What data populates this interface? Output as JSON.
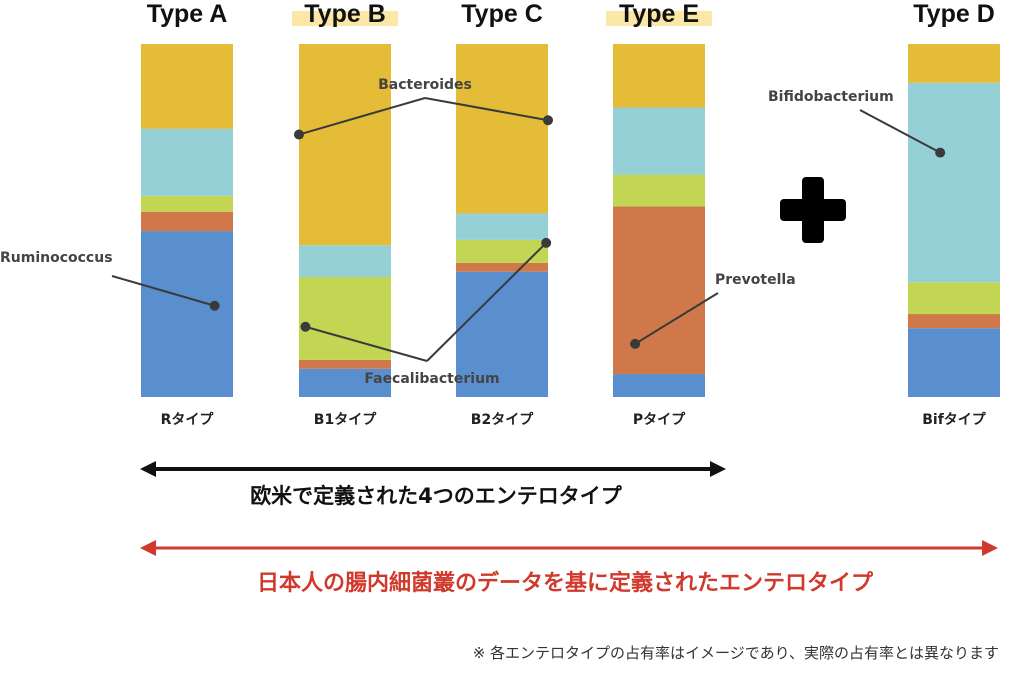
{
  "chart_data": {
    "type": "bar",
    "stacked": true,
    "normalized": true,
    "segment_order_bottom_to_top": [
      "Ruminococcus",
      "Prevotella",
      "Faecalibacterium",
      "Bifidobacterium",
      "Bacteroides"
    ],
    "colors": {
      "Ruminococcus": "#5a8fcf",
      "Prevotella": "#d0784a",
      "Faecalibacterium": "#c3d654",
      "Bifidobacterium": "#95d0d6",
      "Bacteroides": "#e4bc37"
    },
    "bars": [
      {
        "title": "Type A",
        "highlight": false,
        "label": "Rタイプ",
        "values": {
          "Ruminococcus": 0.47,
          "Prevotella": 0.055,
          "Faecalibacterium": 0.045,
          "Bifidobacterium": 0.19,
          "Bacteroides": 0.24
        }
      },
      {
        "title": "Type B",
        "highlight": true,
        "label": "B1タイプ",
        "values": {
          "Ruminococcus": 0.08,
          "Prevotella": 0.025,
          "Faecalibacterium": 0.235,
          "Bifidobacterium": 0.09,
          "Bacteroides": 0.57
        }
      },
      {
        "title": "Type C",
        "highlight": false,
        "label": "B2タイプ",
        "values": {
          "Ruminococcus": 0.355,
          "Prevotella": 0.025,
          "Faecalibacterium": 0.065,
          "Bifidobacterium": 0.075,
          "Bacteroides": 0.48
        }
      },
      {
        "title": "Type E",
        "highlight": true,
        "label": "Pタイプ",
        "values": {
          "Ruminococcus": 0.065,
          "Prevotella": 0.475,
          "Faecalibacterium": 0.09,
          "Bifidobacterium": 0.19,
          "Bacteroides": 0.18
        }
      },
      {
        "title": "Type D",
        "highlight": false,
        "label": "Bifタイプ",
        "values": {
          "Ruminococcus": 0.195,
          "Prevotella": 0.04,
          "Faecalibacterium": 0.09,
          "Bifidobacterium": 0.565,
          "Bacteroides": 0.11
        }
      }
    ],
    "annotations": [
      {
        "text": "Bacteroides",
        "targets": [
          [
            1,
            "Bacteroides"
          ],
          [
            2,
            "Bacteroides"
          ]
        ]
      },
      {
        "text": "Ruminococcus",
        "targets": [
          [
            0,
            "Ruminococcus"
          ]
        ]
      },
      {
        "text": "Faecalibacterium",
        "targets": [
          [
            1,
            "Faecalibacterium"
          ],
          [
            2,
            "Faecalibacterium"
          ]
        ]
      },
      {
        "text": "Prevotella",
        "targets": [
          [
            3,
            "Prevotella"
          ]
        ]
      },
      {
        "text": "Bifidobacterium",
        "targets": [
          [
            4,
            "Bifidobacterium"
          ]
        ]
      }
    ],
    "highlight_color": "#fbe7a6",
    "plus_sign": "+",
    "arrows": [
      {
        "text": "欧米で定義された4つのエンテロタイプ",
        "color": "#111111",
        "spans_bars": [
          0,
          3
        ]
      },
      {
        "text": "日本人の腸内細菌叢のデータを基に定義されたエンテロタイプ",
        "color": "#d0392b",
        "spans_bars": [
          0,
          4
        ]
      }
    ],
    "footnote": "※ 各エンテロタイプの占有率はイメージであり、実際の占有率とは異なります"
  }
}
